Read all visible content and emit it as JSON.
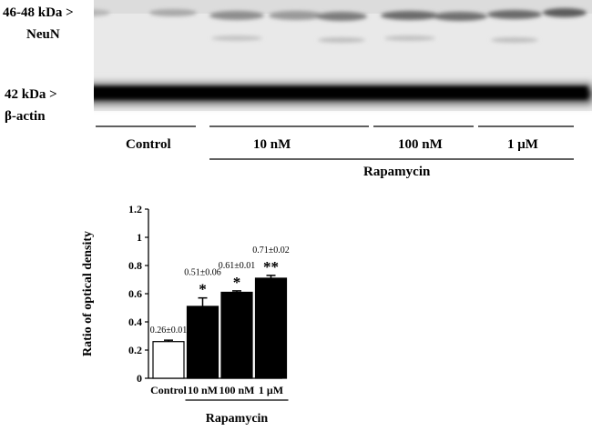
{
  "blot": {
    "neun_kda": "46-48 kDa >",
    "neun_name": "NeuN",
    "actin_kda": "42 kDa >",
    "actin_name": "β-actin",
    "groups": [
      "Control",
      "10 nM",
      "100 nM",
      "1 μM"
    ],
    "treatment": "Rapamycin"
  },
  "chart_data": {
    "type": "bar",
    "categories": [
      "Control",
      "10 nM",
      "100 nM",
      "1 μM"
    ],
    "values": [
      0.26,
      0.51,
      0.61,
      0.71
    ],
    "errors": [
      0.01,
      0.06,
      0.01,
      0.02
    ],
    "value_labels": [
      "0.26±0.01",
      "0.51±0.06",
      "0.61±0.01",
      "0.71±0.02"
    ],
    "significance": [
      "",
      "*",
      "*",
      "**"
    ],
    "bar_colors": [
      "#ffffff",
      "#000000",
      "#000000",
      "#000000"
    ],
    "ylabel": "Ratio of optical density",
    "xlabel": "Rapamycin",
    "ylim": [
      0,
      1.2
    ],
    "yticks": [
      "0",
      "0.2",
      "0.4",
      "0.6",
      "0.8",
      "1",
      "1.2"
    ]
  }
}
